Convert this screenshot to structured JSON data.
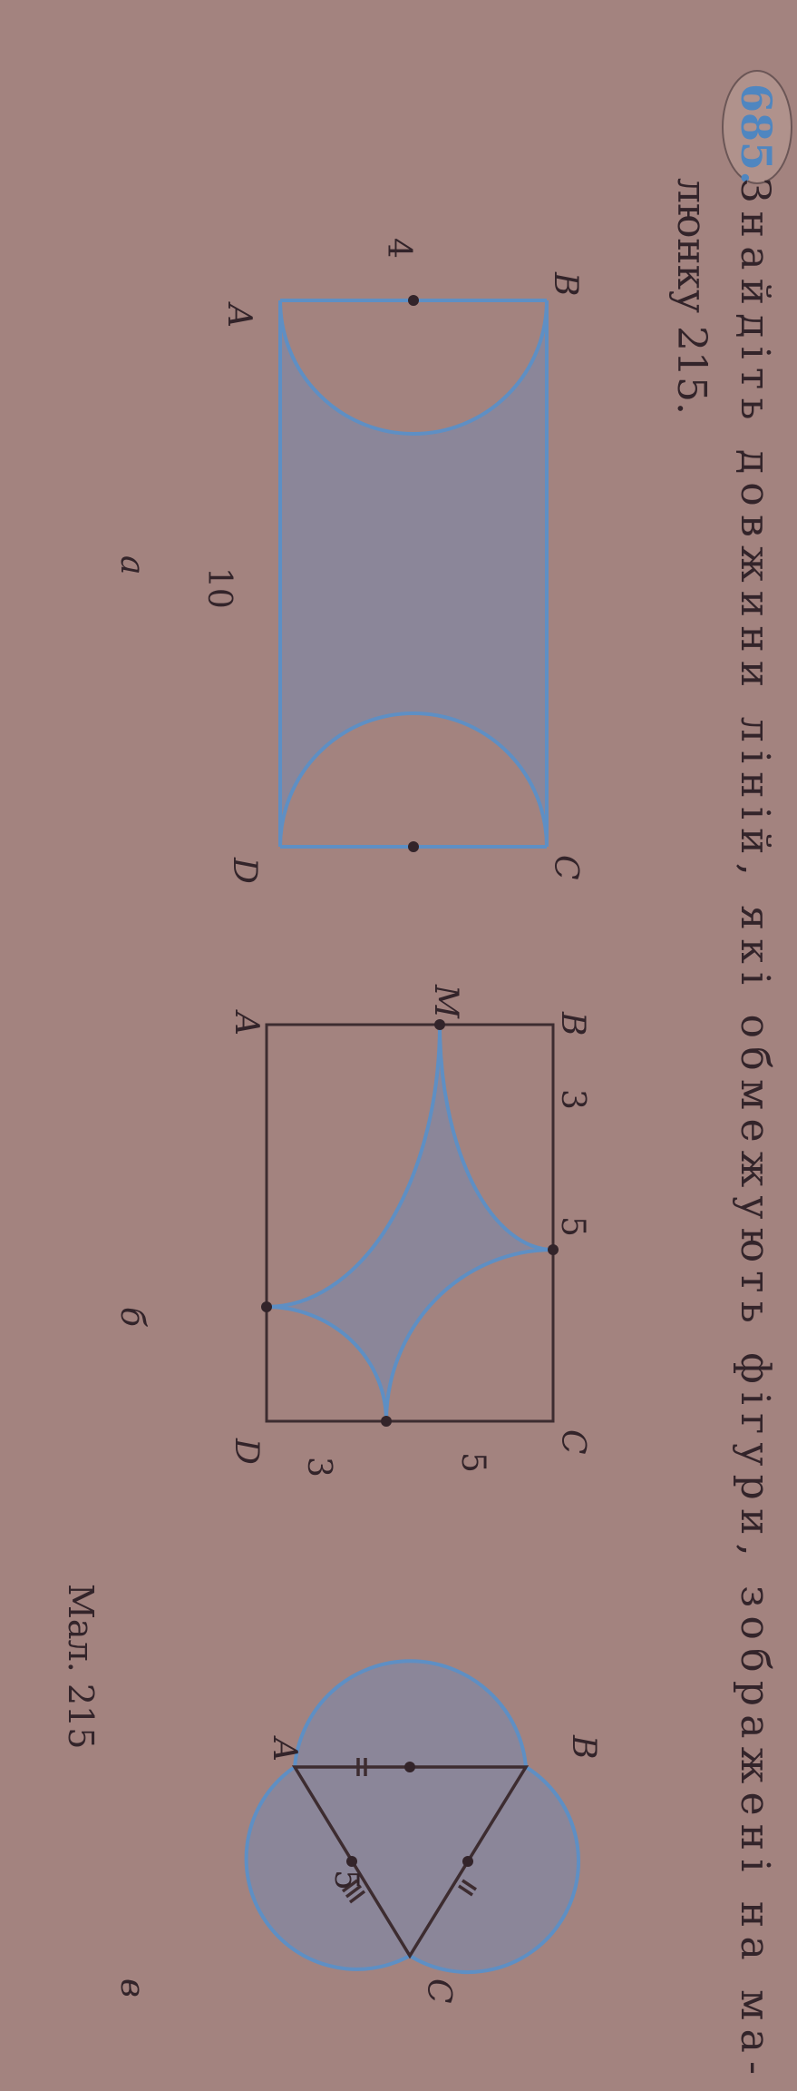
{
  "problem": {
    "number": "685.",
    "line1": "Знайдіть довжини ліній, які обмежують фігури, зображені на ма-",
    "line2": "люнку 215."
  },
  "figure_a": {
    "B": "B",
    "A": "A",
    "C": "C",
    "D": "D",
    "side_ab": "4",
    "side_ad": "10",
    "caption": "а"
  },
  "figure_b": {
    "B": "B",
    "C": "C",
    "A": "A",
    "D": "D",
    "M": "M",
    "bm": "3",
    "bc_rest": "5",
    "cd_top": "5",
    "cd_rest": "3",
    "caption": "б"
  },
  "figure_c": {
    "A": "A",
    "B": "B",
    "C": "C",
    "side": "5",
    "caption": "в"
  },
  "figure_caption": "Мал. 215",
  "colors": {
    "page": "#a3837f",
    "fill": "#8b8699",
    "stroke": "#5e8fc4",
    "ink": "#33242a"
  }
}
